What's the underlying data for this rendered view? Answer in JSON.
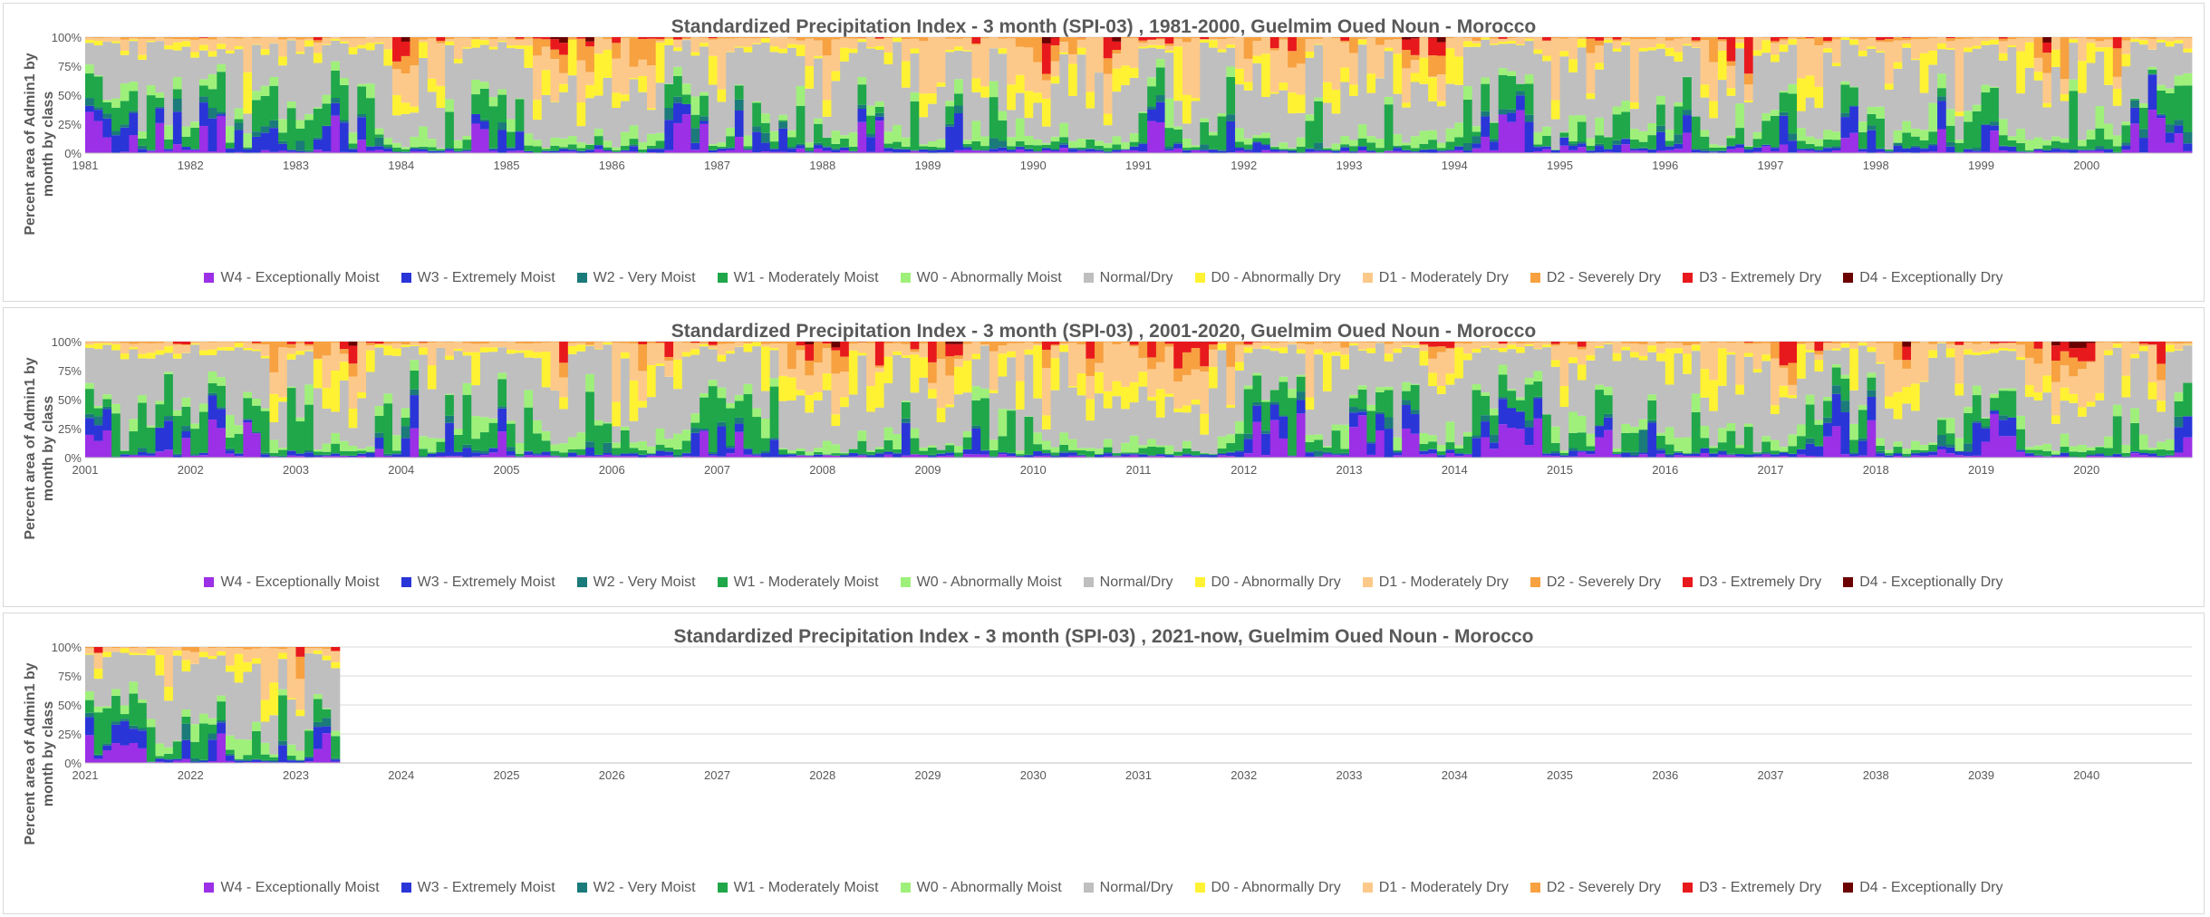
{
  "colors": {
    "W4": "#9b30e6",
    "W3": "#2a35d8",
    "W2": "#1b7a7a",
    "W1": "#1fa74a",
    "W0": "#9ff07a",
    "N": "#bfbfbf",
    "D0": "#fff233",
    "D1": "#fcc98a",
    "D2": "#f7a141",
    "D3": "#e8191c",
    "D4": "#6b0000",
    "grid": "#d9d9d9",
    "text": "#595959"
  },
  "chart_data": [
    {
      "type": "stacked-bar",
      "title": "Standardized Precipitation Index - 3 month (SPI-03) , 1981-2000, Guelmim Oued Noun - Morocco",
      "ylabel": "Percent area of Admin1 by month by class",
      "ylim": [
        0,
        100
      ],
      "yticks": [
        "0%",
        "25%",
        "50%",
        "75%",
        "100%"
      ],
      "x_tick_labels": [
        "1981",
        "1982",
        "1983",
        "1984",
        "1985",
        "1986",
        "1987",
        "1988",
        "1989",
        "1990",
        "1991",
        "1992",
        "1993",
        "1994",
        "1995",
        "1996",
        "1997",
        "1998",
        "1999",
        "2000"
      ],
      "months_span": 240,
      "months_with_data": 240,
      "grid": "horizontal",
      "legend_position": "bottom",
      "legend": [
        "W4 - Exceptionally Moist",
        "W3 - Extremely Moist",
        "W2 - Very Moist",
        "W1 - Moderately Moist",
        "W0 - Abnormally Moist",
        "Normal/Dry",
        "D0 - Abnormally Dry",
        "D1 - Moderately Dry",
        "D2 - Severely Dry",
        "D3 - Extremely Dry",
        "D4 - Exceptionally Dry"
      ],
      "class_keys": [
        "W4",
        "W3",
        "W2",
        "W1",
        "W0",
        "N",
        "D0",
        "D1",
        "D2",
        "D3",
        "D4"
      ],
      "seed": 1981
    },
    {
      "type": "stacked-bar",
      "title": "Standardized Precipitation Index - 3 month (SPI-03) , 2001-2020, Guelmim Oued Noun - Morocco",
      "ylabel": "Percent area of Admin1 by month by class",
      "ylim": [
        0,
        100
      ],
      "yticks": [
        "0%",
        "25%",
        "50%",
        "75%",
        "100%"
      ],
      "x_tick_labels": [
        "2001",
        "2002",
        "2003",
        "2004",
        "2005",
        "2006",
        "2007",
        "2008",
        "2009",
        "2010",
        "2011",
        "2012",
        "2013",
        "2014",
        "2015",
        "2016",
        "2017",
        "2018",
        "2019",
        "2020"
      ],
      "months_span": 240,
      "months_with_data": 240,
      "grid": "horizontal",
      "legend_position": "bottom",
      "legend": [
        "W4 - Exceptionally Moist",
        "W3 - Extremely Moist",
        "W2 - Very Moist",
        "W1 - Moderately Moist",
        "W0 - Abnormally Moist",
        "Normal/Dry",
        "D0 - Abnormally Dry",
        "D1 - Moderately Dry",
        "D2 - Severely Dry",
        "D3 - Extremely Dry",
        "D4 - Exceptionally Dry"
      ],
      "class_keys": [
        "W4",
        "W3",
        "W2",
        "W1",
        "W0",
        "N",
        "D0",
        "D1",
        "D2",
        "D3",
        "D4"
      ],
      "seed": 2001
    },
    {
      "type": "stacked-bar",
      "title": "Standardized Precipitation Index - 3 month (SPI-03) , 2021-now, Guelmim Oued Noun - Morocco",
      "ylabel": "Percent area of Admin1 by month by class",
      "ylim": [
        0,
        100
      ],
      "yticks": [
        "0%",
        "25%",
        "50%",
        "75%",
        "100%"
      ],
      "x_tick_labels": [
        "2021",
        "2022",
        "2023",
        "2024",
        "2025",
        "2026",
        "2027",
        "2028",
        "2029",
        "2030",
        "2031",
        "2032",
        "2033",
        "2034",
        "2035",
        "2036",
        "2037",
        "2038",
        "2039",
        "2040"
      ],
      "months_span": 240,
      "months_with_data": 29,
      "grid": "horizontal",
      "legend_position": "bottom",
      "legend": [
        "W4 - Exceptionally Moist",
        "W3 - Extremely Moist",
        "W2 - Very Moist",
        "W1 - Moderately Moist",
        "W0 - Abnormally Moist",
        "Normal/Dry",
        "D0 - Abnormally Dry",
        "D1 - Moderately Dry",
        "D2 - Severely Dry",
        "D3 - Extremely Dry",
        "D4 - Exceptionally Dry"
      ],
      "class_keys": [
        "W4",
        "W3",
        "W2",
        "W1",
        "W0",
        "N",
        "D0",
        "D1",
        "D2",
        "D3",
        "D4"
      ],
      "seed": 2021
    }
  ]
}
